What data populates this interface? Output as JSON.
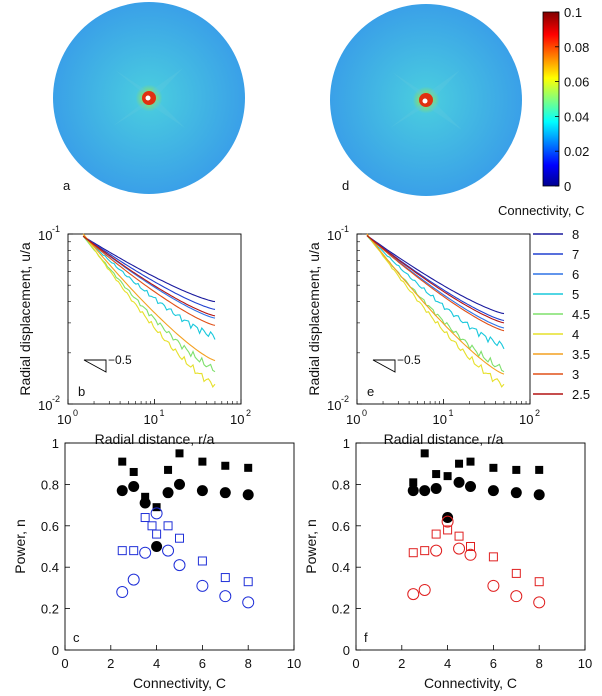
{
  "chart_data": [
    {
      "type": "heatmap",
      "panel": "a",
      "description": "circular connectivity map, high values at center forming cross pattern",
      "center_value": 0.1,
      "background_value": 0.03
    },
    {
      "type": "heatmap",
      "panel": "d",
      "description": "circular connectivity map, high values at center",
      "center_value": 0.1,
      "background_value": 0.03
    },
    {
      "type": "colorbar",
      "label": "Connectivity, C",
      "ticks": [
        "0.1",
        "0.08",
        "0.06",
        "0.04",
        "0.02",
        "0"
      ],
      "tick_values": [
        0.1,
        0.08,
        0.06,
        0.04,
        0.02,
        0
      ],
      "range": [
        0,
        0.1
      ]
    },
    {
      "type": "line",
      "panel": "b",
      "xscale": "log",
      "yscale": "log",
      "xlim": [
        1,
        100
      ],
      "ylim": [
        0.01,
        0.1
      ],
      "xlabel": "Radial distance, r/a",
      "ylabel": "Radial displacement, u/a",
      "xticks": [
        "10",
        "10",
        "10"
      ],
      "xtick_exps": [
        "0",
        "1",
        "2"
      ],
      "yticks": [
        "10",
        "10"
      ],
      "ytick_exps": [
        "-2",
        "-1"
      ],
      "slope_label": "−0.5",
      "series": [
        {
          "name": "8",
          "start": [
            1.5,
            0.097
          ],
          "end": [
            50,
            0.04
          ]
        },
        {
          "name": "7",
          "start": [
            1.5,
            0.097
          ],
          "end": [
            50,
            0.036
          ]
        },
        {
          "name": "6",
          "start": [
            1.5,
            0.097
          ],
          "end": [
            50,
            0.032
          ]
        },
        {
          "name": "5",
          "start": [
            1.5,
            0.097
          ],
          "end": [
            50,
            0.025
          ]
        },
        {
          "name": "4.5",
          "start": [
            1.5,
            0.097
          ],
          "end": [
            50,
            0.016
          ]
        },
        {
          "name": "4",
          "start": [
            1.5,
            0.1
          ],
          "end": [
            50,
            0.013
          ]
        },
        {
          "name": "3.5",
          "start": [
            1.5,
            0.1
          ],
          "end": [
            50,
            0.018
          ]
        },
        {
          "name": "3",
          "start": [
            1.5,
            0.097
          ],
          "end": [
            50,
            0.029
          ]
        },
        {
          "name": "2.5",
          "start": [
            1.5,
            0.097
          ],
          "end": [
            50,
            0.033
          ]
        }
      ]
    },
    {
      "type": "line",
      "panel": "e",
      "xscale": "log",
      "yscale": "log",
      "xlim": [
        1,
        100
      ],
      "ylim": [
        0.01,
        0.1
      ],
      "xlabel": "Radial distance, r/a",
      "ylabel": "Radial displacement, u/a",
      "xticks": [
        "10",
        "10",
        "10"
      ],
      "xtick_exps": [
        "0",
        "1",
        "2"
      ],
      "yticks": [
        "10",
        "10"
      ],
      "ytick_exps": [
        "-2",
        "-1"
      ],
      "slope_label": "−0.5",
      "series": [
        {
          "name": "8",
          "start": [
            1.3,
            0.098
          ],
          "end": [
            50,
            0.034
          ]
        },
        {
          "name": "7",
          "start": [
            1.3,
            0.098
          ],
          "end": [
            50,
            0.031
          ]
        },
        {
          "name": "6",
          "start": [
            1.3,
            0.098
          ],
          "end": [
            50,
            0.028
          ]
        },
        {
          "name": "5",
          "start": [
            1.3,
            0.098
          ],
          "end": [
            50,
            0.022
          ]
        },
        {
          "name": "4.5",
          "start": [
            1.3,
            0.098
          ],
          "end": [
            50,
            0.016
          ]
        },
        {
          "name": "4",
          "start": [
            1.3,
            0.1
          ],
          "end": [
            50,
            0.013
          ]
        },
        {
          "name": "3.5",
          "start": [
            1.3,
            0.1
          ],
          "end": [
            50,
            0.015
          ]
        },
        {
          "name": "3",
          "start": [
            1.3,
            0.098
          ],
          "end": [
            50,
            0.027
          ]
        },
        {
          "name": "2.5",
          "start": [
            1.3,
            0.098
          ],
          "end": [
            50,
            0.03
          ]
        }
      ]
    },
    {
      "type": "legend",
      "entries": [
        "8",
        "7",
        "6",
        "5",
        "4.5",
        "4",
        "3.5",
        "3",
        "2.5"
      ],
      "colors": [
        "#1a1a9e",
        "#2040d0",
        "#2e72e6",
        "#18c8dc",
        "#7ee06c",
        "#e6e02a",
        "#f4a020",
        "#e05018",
        "#b41414"
      ]
    },
    {
      "type": "scatter",
      "panel": "c",
      "xlim": [
        0,
        10
      ],
      "ylim": [
        0,
        1
      ],
      "xlabel": "Connectivity, C",
      "ylabel": "Power, n",
      "xticks": [
        "0",
        "2",
        "4",
        "6",
        "8",
        "10"
      ],
      "yticks": [
        "0",
        "0.2",
        "0.4",
        "0.6",
        "0.8",
        "1"
      ],
      "open_color": "#2030d8",
      "series": [
        {
          "name": "filled squares",
          "x": [
            2.5,
            3,
            3.5,
            4,
            4.5,
            5,
            6,
            7,
            8
          ],
          "y": [
            0.91,
            0.86,
            0.74,
            0.69,
            0.87,
            0.95,
            0.91,
            0.89,
            0.88
          ]
        },
        {
          "name": "filled circles",
          "x": [
            2.5,
            3,
            3.5,
            4,
            4.5,
            5,
            6,
            7,
            8
          ],
          "y": [
            0.77,
            0.79,
            0.71,
            0.5,
            0.76,
            0.8,
            0.77,
            0.76,
            0.75
          ]
        },
        {
          "name": "open squares",
          "x": [
            2.5,
            3,
            3.5,
            3.8,
            4,
            4.5,
            5,
            6,
            7,
            8
          ],
          "y": [
            0.48,
            0.48,
            0.64,
            0.6,
            0.56,
            0.6,
            0.54,
            0.43,
            0.35,
            0.33
          ]
        },
        {
          "name": "open circles",
          "x": [
            2.5,
            3,
            3.5,
            4,
            4.5,
            5,
            6,
            7,
            8
          ],
          "y": [
            0.28,
            0.34,
            0.47,
            0.66,
            0.48,
            0.41,
            0.31,
            0.26,
            0.23
          ]
        }
      ]
    },
    {
      "type": "scatter",
      "panel": "f",
      "xlim": [
        0,
        10
      ],
      "ylim": [
        0,
        1
      ],
      "xlabel": "Connectivity, C",
      "ylabel": "Power, n",
      "xticks": [
        "0",
        "2",
        "4",
        "6",
        "8",
        "10"
      ],
      "yticks": [
        "0",
        "0.2",
        "0.4",
        "0.6",
        "0.8",
        "1"
      ],
      "open_color": "#e02020",
      "series": [
        {
          "name": "filled squares",
          "x": [
            2.5,
            3,
            3.5,
            4,
            4.5,
            5,
            6,
            7,
            8
          ],
          "y": [
            0.81,
            0.95,
            0.85,
            0.84,
            0.9,
            0.91,
            0.88,
            0.87,
            0.87
          ]
        },
        {
          "name": "filled circles",
          "x": [
            2.5,
            3,
            3.5,
            4,
            4.5,
            5,
            6,
            7,
            8
          ],
          "y": [
            0.77,
            0.77,
            0.78,
            0.64,
            0.81,
            0.79,
            0.77,
            0.76,
            0.75
          ]
        },
        {
          "name": "open squares",
          "x": [
            2.5,
            3,
            3.5,
            4,
            4.5,
            5,
            6,
            7,
            8
          ],
          "y": [
            0.47,
            0.48,
            0.56,
            0.58,
            0.55,
            0.5,
            0.45,
            0.37,
            0.33
          ]
        },
        {
          "name": "open circles",
          "x": [
            2.5,
            3,
            3.5,
            4,
            4.5,
            5,
            6,
            7,
            8
          ],
          "y": [
            0.27,
            0.29,
            0.48,
            0.62,
            0.49,
            0.46,
            0.31,
            0.26,
            0.23
          ]
        }
      ]
    }
  ]
}
